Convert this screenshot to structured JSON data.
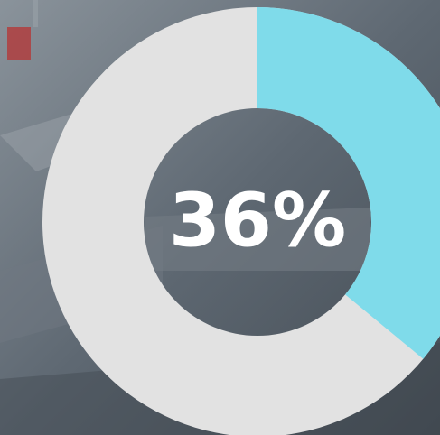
{
  "chart_data": {
    "type": "donut",
    "values": [
      36
    ],
    "value_labels": [
      "36%"
    ],
    "color": "#7fdbea",
    "track_color": "#e2e2e2"
  }
}
